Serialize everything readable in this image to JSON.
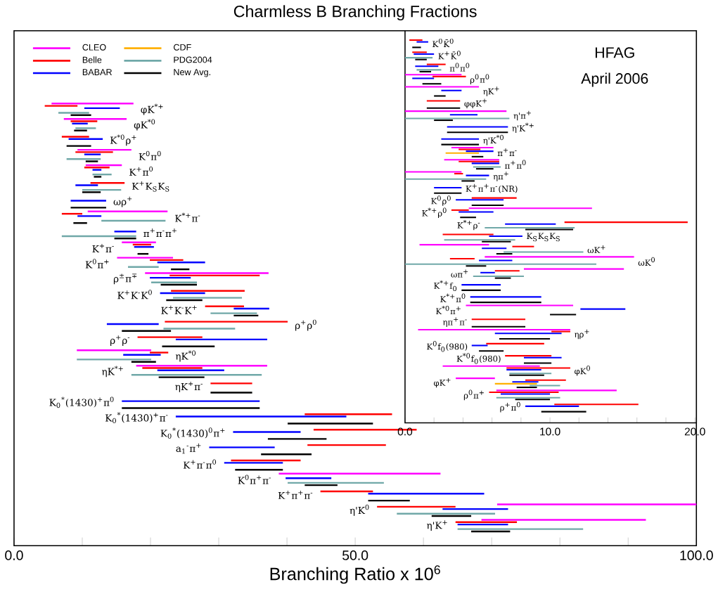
{
  "chart_data": [
    {
      "type": "bar",
      "orientation": "horizontal",
      "title": "Charmless B Branching Fractions",
      "xlabel": "Branching Ratio x 10$^{6}$",
      "legend": "top left",
      "categories": [
        "φK$^{*+}$",
        "φK$^{*0}$",
        "K$^{*0}$ρ$^{+}$",
        "K$^{0}$π$^{0}$",
        "K$^{+}$π$^{0}$",
        "K$^{+}$K$_{S}$K$_{S}$",
        "ωρ$^{+}$",
        "K$^{*+}$π$^{-}$",
        "π$^{+}$π$^{-}$π$^{+}$",
        "K$^{+}$π$^{-}$",
        "K$^{0}$π$^{+}$",
        "ρ$^{±}$π$^{∓}$",
        "K$^{+}$K$^{-}$K$^{0}$",
        "K$^{+}$K$^{-}$K$^{+}$",
        "ρ$^{+}$ρ$^{0}$",
        "ρ$^{+}$ρ$^{-}$",
        "ηK$^{*0}$",
        "ηK$^{*+}$",
        "ηK$^{+}$π$^{-}$",
        "K$_{0}$$^{*}$(1430)$^{+}$π$^{0}$",
        "K$_{0}$$^{*}$(1430)$^{+}$π$^{-}$",
        "K$_{0}$$^{*}$(1430)$^{0}$π$^{+}$",
        "a$_{1}$$^{-}$π$^{+}$",
        "K$^{+}$π$^{-}$π$^{0}$",
        "K$^{0}$π$^{+}$π$^{-}$",
        "K$^{+}$π$^{+}$π$^{-}$",
        "η'K$^{0}$",
        "η'K$^{+}$"
      ],
      "xlim": [
        0,
        100
      ],
      "xticks": [
        {
          "value": 0,
          "label": "0.0"
        },
        {
          "value": 10,
          "label": null
        },
        {
          "value": 20,
          "label": null
        },
        {
          "value": 30,
          "label": null
        },
        {
          "value": 40,
          "label": null
        },
        {
          "value": 50,
          "label": "50.0"
        },
        {
          "value": 60,
          "label": null
        },
        {
          "value": 70,
          "label": null
        },
        {
          "value": 80,
          "label": null
        },
        {
          "value": 90,
          "label": null
        },
        {
          "value": 100,
          "label": "100.0"
        }
      ],
      "series": [
        {
          "name": "CLEO",
          "color": "#ff00ff",
          "base": [
            5.5,
            7.3,
            null,
            9.3,
            10.5,
            null,
            null,
            10.8,
            null,
            15.8,
            15.1,
            19.2,
            null,
            null,
            null,
            null,
            9.2,
            17.9,
            null,
            null,
            null,
            null,
            null,
            null,
            38.8,
            null,
            70.8,
            68.5
          ],
          "values": [
            12.0,
            9.2,
            null,
            7.9,
            5.3,
            null,
            null,
            11.7,
            null,
            5.0,
            8.2,
            18.1,
            null,
            null,
            null,
            null,
            10.9,
            19.2,
            null,
            null,
            null,
            null,
            null,
            null,
            23.7,
            null,
            29.2,
            24.1
          ]
        },
        {
          "name": "Belle",
          "color": "#ff0000",
          "base": [
            4.5,
            8.3,
            7.0,
            9.0,
            10.3,
            11.2,
            null,
            7.0,
            null,
            17.4,
            19.9,
            22.8,
            23.0,
            28.0,
            22.1,
            18.1,
            19.9,
            18.8,
            28.8,
            null,
            42.6,
            43.9,
            43.0,
            31.8,
            null,
            44.9,
            53.2,
            64.7
          ],
          "values": [
            4.8,
            3.9,
            4.0,
            5.5,
            3.7,
            5.0,
            null,
            3.0,
            null,
            2.7,
            4.9,
            13.2,
            10.8,
            5.7,
            18.0,
            9.5,
            2.7,
            8.8,
            6.1,
            null,
            12.8,
            15.1,
            11.5,
            10.2,
            null,
            7.7,
            11.5,
            9.0
          ]
        },
        {
          "name": "BABAR",
          "color": "#0000ff",
          "base": [
            10.3,
            8.5,
            8.0,
            10.3,
            11.5,
            9.0,
            8.3,
            9.3,
            14.7,
            17.6,
            21.0,
            19.9,
            21.4,
            32.2,
            13.6,
            23.7,
            16.0,
            21.0,
            null,
            15.8,
            23.7,
            32.1,
            28.6,
            30.8,
            39.8,
            51.9,
            62.8,
            65.0
          ],
          "values": [
            5.2,
            2.3,
            5.0,
            2.4,
            1.3,
            3.3,
            5.2,
            3.5,
            3.2,
            2.9,
            7.0,
            6.0,
            6.6,
            5.2,
            7.6,
            13.4,
            5.5,
            9.8,
            null,
            20.2,
            25.0,
            9.9,
            9.6,
            8.6,
            6.7,
            17.0,
            9.6,
            7.4
          ]
        },
        {
          "name": "CDF",
          "color": "#ffb000",
          "base": [
            null,
            null,
            null,
            null,
            null,
            null,
            null,
            null,
            null,
            null,
            null,
            null,
            null,
            null,
            null,
            null,
            null,
            null,
            null,
            null,
            null,
            null,
            null,
            null,
            null,
            null,
            null,
            null
          ],
          "values": [
            null,
            null,
            null,
            null,
            null,
            null,
            null,
            null,
            null,
            null,
            null,
            null,
            null,
            null,
            null,
            null,
            null,
            null,
            null,
            null,
            null,
            null,
            null,
            null,
            null,
            null,
            null,
            null
          ]
        },
        {
          "name": "PDG2004",
          "color": "#70a8a8",
          "base": [
            6.5,
            9.0,
            null,
            7.7,
            11.5,
            10.0,
            null,
            12.8,
            7.0,
            null,
            16.7,
            20.1,
            23.3,
            28.8,
            21.9,
            null,
            9.2,
            17.2,
            null,
            null,
            null,
            null,
            null,
            null,
            40.1,
            null,
            56.1,
            65.0
          ],
          "values": [
            4.5,
            3.0,
            null,
            5.0,
            2.8,
            5.7,
            null,
            9.4,
            10.9,
            null,
            4.5,
            6.7,
            10.1,
            6.8,
            10.5,
            null,
            10.9,
            19.1,
            null,
            null,
            null,
            null,
            null,
            null,
            14.1,
            null,
            14.4,
            18.4
          ]
        },
        {
          "name": "New Avg.",
          "color": "#000000",
          "base": [
            8.3,
            8.8,
            7.7,
            10.5,
            11.7,
            10.0,
            8.3,
            8.7,
            14.7,
            18.1,
            23.0,
            21.5,
            22.3,
            32.2,
            15.8,
            21.7,
            17.2,
            21.2,
            28.8,
            15.8,
            40.1,
            37.2,
            36.2,
            32.4,
            42.6,
            51.9,
            61.2,
            67.0
          ],
          "values": [
            3.0,
            1.9,
            3.6,
            1.8,
            1.1,
            2.7,
            5.2,
            2.0,
            3.2,
            1.6,
            2.7,
            5.3,
            5.3,
            3.6,
            7.2,
            7.7,
            3.6,
            6.7,
            6.1,
            20.2,
            12.5,
            8.6,
            7.4,
            7.0,
            4.8,
            6.1,
            5.8,
            5.7
          ]
        }
      ]
    },
    {
      "type": "bar",
      "orientation": "horizontal",
      "annotations": [
        "HFAG",
        "April 2006"
      ],
      "categories": [
        "K$^{0}$K̄$^{0}$",
        "K$^{+}$K̄$^{0}$",
        "π$^{0}$π$^{0}$",
        "ρ$^{0}$π$^{0}$",
        "ηK$^{+}$",
        "φφK$^{+}$",
        "η'π$^{+}$",
        "η'K$^{*+}$",
        "η'K$^{*0}$",
        "π$^{+}$π$^{-}$",
        "π$^{+}$π$^{0}$",
        "ηπ$^{+}$",
        "K$^{+}$π$^{+}$π$^{-}$(NR)",
        "K$^{0}$ρ$^{0}$",
        "K$^{*+}$ρ$^{0}$",
        "K$^{*+}$ρ$^{-}$",
        "K$_{S}$K$_{S}$K$_{S}$",
        "ωK$^{+}$",
        "ωK$^{0}$",
        "ωπ$^{+}$",
        "K$^{*+}$f$_{0}$",
        "K$^{*+}$π$^{0}$",
        "K$^{*0}$π$^{+}$",
        "ηπ$^{+}$π$^{-}$",
        "ηρ$^{+}$",
        "K$^{0}$f$_{0}$(980)",
        "K$^{*0}$f$_{0}$(980)",
        "φK$^{0}$",
        "φK$^{+}$",
        "ρ$^{0}$π$^{+}$",
        "ρ$^{+}$π$^{0}$"
      ],
      "xlim": [
        0,
        20.1
      ],
      "xticks": [
        {
          "value": 0,
          "label": "0.0"
        },
        {
          "value": 2,
          "label": null
        },
        {
          "value": 4,
          "label": null
        },
        {
          "value": 6,
          "label": null
        },
        {
          "value": 8,
          "label": null
        },
        {
          "value": 10,
          "label": "10.0"
        },
        {
          "value": 12,
          "label": null
        },
        {
          "value": 14,
          "label": null
        },
        {
          "value": 16,
          "label": null
        },
        {
          "value": 18,
          "label": null
        },
        {
          "value": 20,
          "label": "20.0"
        }
      ],
      "series": [
        {
          "color": "#ff00ff",
          "base": [
            null,
            null,
            null,
            0,
            0,
            null,
            0,
            null,
            null,
            3.2,
            2.7,
            0,
            null,
            null,
            4.4,
            null,
            null,
            1.0,
            5.5,
            8.2,
            null,
            null,
            4.2,
            null,
            0.9,
            null,
            null,
            2.6,
            3.5,
            6.3,
            null
          ],
          "values": [
            null,
            null,
            null,
            3.9,
            5.1,
            null,
            7.0,
            null,
            null,
            2.9,
            3.8,
            3.9,
            null,
            null,
            8.5,
            null,
            null,
            4.8,
            10.3,
            6.9,
            null,
            null,
            7.4,
            null,
            10.5,
            null,
            null,
            6.7,
            2.7,
            8.3,
            null
          ]
        },
        {
          "color": "#ff0000",
          "base": [
            0.3,
            0.5,
            1.5,
            1.9,
            null,
            1.5,
            null,
            null,
            null,
            3.7,
            3.7,
            3.4,
            null,
            4.6,
            3.2,
            11.0,
            2.6,
            7.4,
            3.1,
            6.2,
            null,
            null,
            null,
            4.6,
            10.1,
            5.6,
            6.9,
            7.0,
            8.3,
            5.8,
            10.3
          ],
          "values": [
            0.9,
            1.0,
            1.3,
            2.3,
            null,
            2.3,
            null,
            null,
            null,
            1.5,
            2.8,
            0.6,
            null,
            3.1,
            1.2,
            8.5,
            3.5,
            1.5,
            1.7,
            1.7,
            null,
            null,
            null,
            3.7,
            1.3,
            4.0,
            3.2,
            4.4,
            2.8,
            4.8,
            5.8
          ]
        },
        {
          "color": "#0000ff",
          "base": [
            0.8,
            0.6,
            0.7,
            0.5,
            2.5,
            null,
            3.1,
            2.9,
            2.5,
            4.2,
            4.6,
            4.2,
            2.0,
            3.5,
            3.7,
            6.9,
            5.8,
            5.3,
            5.1,
            5.2,
            3.9,
            4.5,
            12.1,
            null,
            6.2,
            4.6,
            8.2,
            7.0,
            7.4,
            6.6,
            8.3
          ],
          "values": [
            0.8,
            1.4,
            1.6,
            1.5,
            1.4,
            null,
            1.9,
            4.2,
            2.6,
            1.9,
            1.9,
            1.6,
            1.9,
            3.3,
            2.4,
            3.5,
            2.3,
            1.7,
            2.3,
            1.0,
            2.7,
            4.9,
            3.1,
            null,
            4.6,
            1.1,
            2.6,
            2.4,
            1.8,
            3.4,
            3.7
          ]
        },
        {
          "color": "#ffb000",
          "base": [
            null,
            null,
            null,
            null,
            null,
            null,
            null,
            null,
            null,
            2.8,
            null,
            null,
            null,
            null,
            null,
            null,
            null,
            null,
            null,
            null,
            null,
            null,
            null,
            null,
            null,
            null,
            null,
            null,
            6.2,
            null,
            null
          ],
          "values": [
            null,
            null,
            null,
            null,
            null,
            null,
            null,
            null,
            null,
            2.3,
            null,
            null,
            null,
            null,
            null,
            null,
            null,
            null,
            null,
            null,
            null,
            null,
            null,
            null,
            null,
            null,
            null,
            null,
            2.9,
            null,
            null
          ]
        },
        {
          "color": "#70a8a8",
          "base": [
            null,
            0,
            0.8,
            null,
            null,
            null,
            0,
            null,
            null,
            null,
            4.7,
            0,
            null,
            null,
            null,
            5.5,
            2.7,
            6.8,
            0,
            4.7,
            null,
            null,
            null,
            null,
            null,
            null,
            null,
            7.2,
            8.6,
            6.3,
            null
          ],
          "values": [
            null,
            1.9,
            1.7,
            null,
            null,
            null,
            7.2,
            null,
            null,
            null,
            1.9,
            5.6,
            null,
            null,
            null,
            6.2,
            4.9,
            5.5,
            13.2,
            3.5,
            null,
            null,
            null,
            null,
            null,
            null,
            null,
            2.9,
            2.1,
            4.4,
            null
          ]
        },
        {
          "color": "#000000",
          "base": [
            0.5,
            0.7,
            1.0,
            1.2,
            2.0,
            1.5,
            2.0,
            2.9,
            2.5,
            4.6,
            4.9,
            3.9,
            2.0,
            4.6,
            3.8,
            8.3,
            5.3,
            6.3,
            4.2,
            6.2,
            3.9,
            4.5,
            10.0,
            4.6,
            6.5,
            5.1,
            8.2,
            7.2,
            7.7,
            7.6,
            9.4
          ],
          "values": [
            0.6,
            0.8,
            0.8,
            1.3,
            0.8,
            2.3,
            1.3,
            4.2,
            2.6,
            0.8,
            1.2,
            0.9,
            1.9,
            2.2,
            1.1,
            3.3,
            2.0,
            1.1,
            1.4,
            1.1,
            2.7,
            4.9,
            1.8,
            3.7,
            3.5,
            1.7,
            1.9,
            2.4,
            1.4,
            2.4,
            3.1
          ]
        }
      ]
    }
  ]
}
